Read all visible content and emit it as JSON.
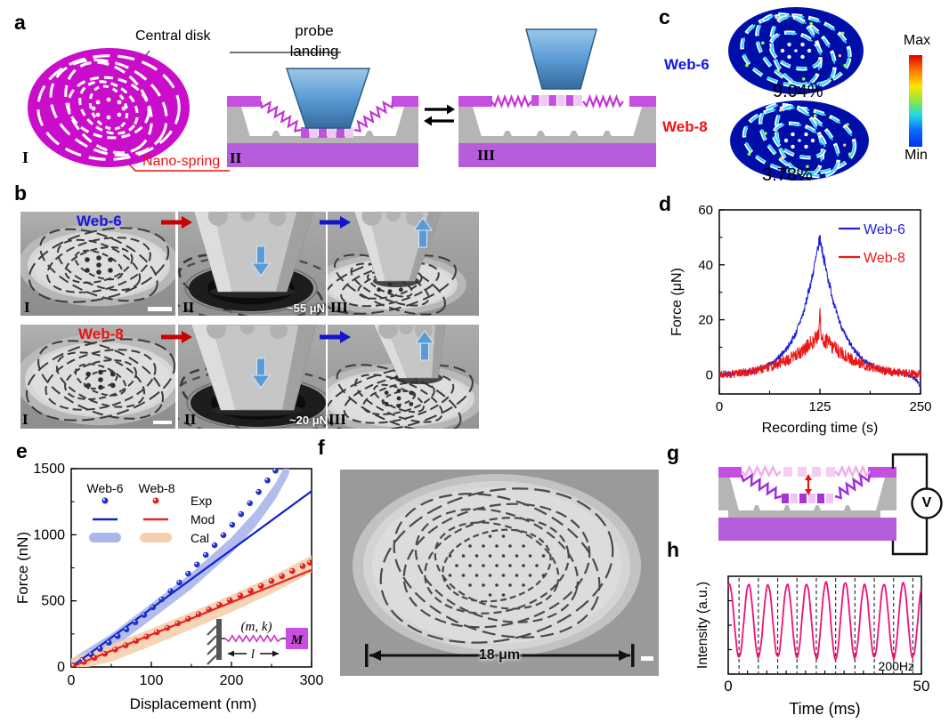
{
  "figure": {
    "background": "#ffffff"
  },
  "panels": {
    "a": {
      "label": "a",
      "central_disk": "Central disk",
      "probe_landing": [
        "probe",
        "landing"
      ],
      "nano_spring": "Nano-spring",
      "numeral_1": "I",
      "numeral_2": "II",
      "numeral_3": "III",
      "disk_color": "#ca0dca",
      "spring_color": "#c433d6",
      "slab_color": "#b55ddb",
      "accent_color": "#c44fe0"
    },
    "b": {
      "label": "b",
      "arrow_colors": [
        "#cc0000",
        "#1515cc"
      ],
      "rows": [
        {
          "name": "Web-6",
          "name_color": "#1414e6",
          "force": "~55 μN",
          "numerals": [
            "I",
            "II",
            "III"
          ]
        },
        {
          "name": "Web-8",
          "name_color": "#ee1111",
          "force": "~20 μN",
          "numerals": [
            "I",
            "II",
            "III"
          ]
        }
      ]
    },
    "c": {
      "label": "c",
      "items": [
        {
          "name": "Web-6",
          "color": "#1414e6",
          "value": "9.04%"
        },
        {
          "name": "Web-8",
          "color": "#ee1111",
          "value": "3.78%"
        }
      ],
      "colorbar_max": "Max",
      "colorbar_min": "Min"
    },
    "d": {
      "label": "d"
    },
    "e": {
      "label": "e"
    },
    "f": {
      "label": "f",
      "scale_text": "18 μm"
    },
    "g": {
      "label": "g",
      "voltmeter": "V"
    },
    "h": {
      "label": "h"
    }
  },
  "chart_data": [
    {
      "id": "d",
      "type": "line",
      "xlabel": "Recording time (s)",
      "ylabel": "Force (μN)",
      "xlim": [
        0,
        250
      ],
      "ylim": [
        -7,
        60
      ],
      "xticks": [
        0,
        125,
        250
      ],
      "xticks_minor": [
        62.5,
        187.5
      ],
      "yticks": [
        0,
        20,
        40,
        60
      ],
      "yticks_minor": [
        10,
        30,
        50
      ],
      "grid": false,
      "legend": {
        "position": "top-right",
        "entries": [
          {
            "label": "Web-6",
            "color": "#2020d0"
          },
          {
            "label": "Web-8",
            "color": "#ee1515"
          }
        ]
      },
      "series": [
        {
          "name": "Web-6",
          "color": "#2020d0",
          "noise_base": 0.8,
          "noise_scale": 0.03,
          "peak": [
            125,
            50
          ],
          "envelope": [
            [
              0,
              0
            ],
            [
              20,
              0.5
            ],
            [
              40,
              1.2
            ],
            [
              55,
              2.5
            ],
            [
              70,
              5
            ],
            [
              85,
              10
            ],
            [
              95,
              15
            ],
            [
              105,
              23
            ],
            [
              115,
              35
            ],
            [
              122,
              45
            ],
            [
              125,
              50
            ],
            [
              128,
              45
            ],
            [
              135,
              35
            ],
            [
              145,
              23
            ],
            [
              155,
              15
            ],
            [
              165,
              10
            ],
            [
              180,
              5
            ],
            [
              195,
              2.5
            ],
            [
              210,
              1.2
            ],
            [
              230,
              0.5
            ],
            [
              242,
              -1
            ],
            [
              250,
              -4
            ]
          ]
        },
        {
          "name": "Web-8",
          "color": "#ee1515",
          "noise_base": 1.5,
          "noise_scale": 0.12,
          "peak": [
            125,
            24
          ],
          "spike": [
            125,
            24
          ],
          "envelope": [
            [
              0,
              0
            ],
            [
              25,
              0.5
            ],
            [
              45,
              1.5
            ],
            [
              65,
              3
            ],
            [
              85,
              5.5
            ],
            [
              100,
              8
            ],
            [
              112,
              11
            ],
            [
              120,
              13
            ],
            [
              125,
              14.5
            ],
            [
              130,
              13
            ],
            [
              138,
              11
            ],
            [
              150,
              8
            ],
            [
              165,
              5.5
            ],
            [
              185,
              3
            ],
            [
              205,
              1.5
            ],
            [
              225,
              0.8
            ],
            [
              250,
              0.2
            ]
          ]
        }
      ]
    },
    {
      "id": "e",
      "type": "scatter-line-band",
      "xlabel": "Displacement (nm)",
      "ylabel": "Force (nN)",
      "xlim": [
        0,
        300
      ],
      "ylim": [
        0,
        1500
      ],
      "xticks": [
        0,
        100,
        200,
        300
      ],
      "xticks_minor": [
        50,
        150,
        250
      ],
      "yticks": [
        0,
        500,
        1000,
        1500
      ],
      "yticks_minor": [
        250,
        750,
        1250
      ],
      "legend": {
        "columns": [
          "Web-6",
          "Web-8"
        ],
        "rows": [
          "Exp",
          "Mod",
          "Cal"
        ]
      },
      "series": [
        {
          "name": "Web-6",
          "point_color": "#2233cc",
          "line_color": "#1122cc",
          "band_color": "#aab6ec",
          "exp": [
            [
              3,
              11
            ],
            [
              14,
              53
            ],
            [
              25,
              93
            ],
            [
              36,
              137
            ],
            [
              47,
              184
            ],
            [
              58,
              233
            ],
            [
              69,
              284
            ],
            [
              80,
              338
            ],
            [
              91,
              393
            ],
            [
              102,
              451
            ],
            [
              113,
              511
            ],
            [
              124,
              574
            ],
            [
              135,
              639
            ],
            [
              146,
              706
            ],
            [
              157,
              775
            ],
            [
              168,
              847
            ],
            [
              179,
              921
            ],
            [
              190,
              997
            ],
            [
              201,
              1075
            ],
            [
              212,
              1156
            ],
            [
              223,
              1239
            ],
            [
              234,
              1324
            ],
            [
              245,
              1411
            ],
            [
              255,
              1485
            ]
          ],
          "mod": [
            [
              0,
              0
            ],
            [
              300,
              1330
            ]
          ],
          "cal_center": [
            [
              0,
              0
            ],
            [
              50,
              190
            ],
            [
              100,
              420
            ],
            [
              150,
              650
            ],
            [
              200,
              920
            ],
            [
              230,
              1120
            ],
            [
              255,
              1330
            ],
            [
              272,
              1520
            ]
          ],
          "cal_halfwidth": 60
        },
        {
          "name": "Web-8",
          "point_color": "#dd2222",
          "line_color": "#ee2222",
          "band_color": "#f6cfae",
          "exp": [
            [
              3,
              7
            ],
            [
              16,
              38
            ],
            [
              29,
              69
            ],
            [
              42,
              100
            ],
            [
              55,
              132
            ],
            [
              68,
              164
            ],
            [
              81,
              197
            ],
            [
              94,
              230
            ],
            [
              107,
              263
            ],
            [
              120,
              296
            ],
            [
              133,
              330
            ],
            [
              146,
              364
            ],
            [
              159,
              399
            ],
            [
              172,
              434
            ],
            [
              185,
              469
            ],
            [
              198,
              504
            ],
            [
              211,
              540
            ],
            [
              224,
              576
            ],
            [
              237,
              613
            ],
            [
              250,
              650
            ],
            [
              263,
              687
            ],
            [
              276,
              725
            ],
            [
              289,
              763
            ],
            [
              298,
              789
            ]
          ],
          "mod": [
            [
              0,
              0
            ],
            [
              300,
              734
            ]
          ],
          "cal_center": [
            [
              0,
              0
            ],
            [
              50,
              105
            ],
            [
              100,
              225
            ],
            [
              150,
              350
            ],
            [
              200,
              480
            ],
            [
              250,
              620
            ],
            [
              300,
              780
            ]
          ],
          "cal_halfwidth": 65
        }
      ],
      "inset": {
        "spring_label": "(m, k)",
        "length_label": "l",
        "mass_label": "M",
        "mass_color": "#c94fe0"
      }
    },
    {
      "id": "h",
      "type": "line",
      "xlabel": "Time (ms)",
      "ylabel": "Intensity (a.u.)",
      "xlim": [
        0,
        50
      ],
      "xtick_labels": [
        "0",
        "50"
      ],
      "annotation": "200Hz",
      "frequency_hz": 200,
      "period_ms": 5,
      "wave_color": "#ef1278",
      "dashed_x": [
        2.8,
        7.8,
        12.8,
        17.8,
        22.8,
        27.8,
        32.8,
        37.8,
        42.8,
        47.8
      ],
      "wave_offset": 0.545,
      "wave_amplitude": 0.375
    }
  ]
}
